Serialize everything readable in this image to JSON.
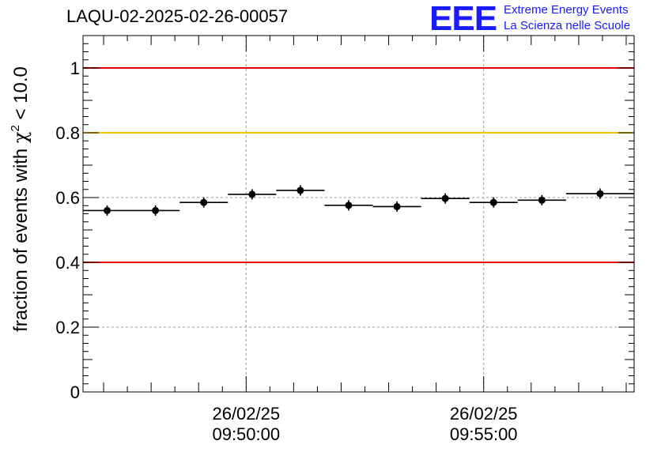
{
  "title": "LAQU-02-2025-02-26-00057",
  "logo": {
    "mark": "EEE",
    "line1": "Extreme Energy Events",
    "line2": "La Scienza nelle Scuole"
  },
  "chart_data": {
    "type": "scatter",
    "ylabel": "fraction of events with χ² < 10.0",
    "ylabel_prefix": "fraction of events with ",
    "ylabel_symbol": "χ",
    "ylabel_sup": "2",
    "ylabel_suffix": " < 10.0",
    "ylim": [
      0,
      1.1
    ],
    "yticks": [
      0,
      0.2,
      0.4,
      0.6,
      0.8,
      1
    ],
    "ytick_labels": [
      "0",
      "0.2",
      "0.4",
      "0.6",
      "0.8",
      "1"
    ],
    "xlim": [
      "09:46:34",
      "09:58:10"
    ],
    "xticks": [
      {
        "time": "09:50:00",
        "label_date": "26/02/25",
        "label_time": "09:50:00"
      },
      {
        "time": "09:55:00",
        "label_date": "26/02/25",
        "label_time": "09:55:00"
      }
    ],
    "grid": true,
    "series": [
      {
        "points": [
          {
            "x_start": "09:46:34",
            "x_end": "09:47:35",
            "y": 0.56,
            "err": 0.016
          },
          {
            "x_start": "09:47:35",
            "x_end": "09:48:36",
            "y": 0.56,
            "err": 0.016
          },
          {
            "x_start": "09:48:36",
            "x_end": "09:49:37",
            "y": 0.585,
            "err": 0.016
          },
          {
            "x_start": "09:49:37",
            "x_end": "09:50:38",
            "y": 0.61,
            "err": 0.016
          },
          {
            "x_start": "09:50:38",
            "x_end": "09:51:39",
            "y": 0.622,
            "err": 0.016
          },
          {
            "x_start": "09:51:39",
            "x_end": "09:52:40",
            "y": 0.576,
            "err": 0.016
          },
          {
            "x_start": "09:52:40",
            "x_end": "09:53:41",
            "y": 0.572,
            "err": 0.016
          },
          {
            "x_start": "09:53:41",
            "x_end": "09:54:42",
            "y": 0.597,
            "err": 0.016
          },
          {
            "x_start": "09:54:42",
            "x_end": "09:55:43",
            "y": 0.585,
            "err": 0.016
          },
          {
            "x_start": "09:55:43",
            "x_end": "09:56:44",
            "y": 0.592,
            "err": 0.016
          },
          {
            "x_start": "09:56:44",
            "x_end": "09:58:10",
            "y": 0.612,
            "err": 0.016
          }
        ]
      }
    ],
    "reference_lines": [
      {
        "y": 1.0,
        "color": "#e00000"
      },
      {
        "y": 0.8,
        "color": "#ffc000"
      },
      {
        "y": 0.4,
        "color": "#e00000"
      }
    ],
    "marker_color": "#000000"
  }
}
